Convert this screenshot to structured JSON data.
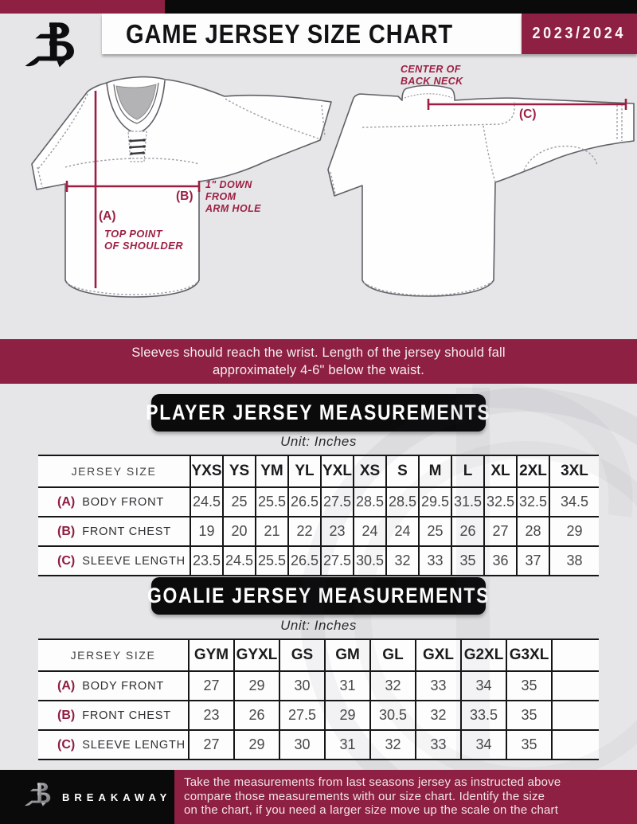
{
  "colors": {
    "maroon": "#8e2043",
    "black": "#0a0a0b",
    "page_bg": "#e6e5e7",
    "measure_line": "#9c1f42",
    "accent_label": "#9c2044"
  },
  "header": {
    "title": "GAME JERSEY SIZE CHART",
    "season": "2023/2024"
  },
  "diagram": {
    "front": {
      "a_label": "(A)",
      "a_desc": [
        "TOP POINT",
        "OF SHOULDER"
      ],
      "b_label": "(B)",
      "b_desc": [
        "1\" DOWN",
        "FROM",
        "ARM HOLE"
      ]
    },
    "back": {
      "c_label": "(C)",
      "neck_desc": [
        "CENTER OF",
        "BACK NECK"
      ]
    }
  },
  "banner": {
    "line1": "Sleeves should reach the wrist. Length of the jersey should fall",
    "line2": "approximately 4-6\" below the waist."
  },
  "player_table": {
    "title": "PLAYER JERSEY MEASUREMENTS",
    "unit": "Unit: Inches",
    "row_header": "JERSEY SIZE",
    "columns": [
      "YXS",
      "YS",
      "YM",
      "YL",
      "YXL",
      "XS",
      "S",
      "M",
      "L",
      "XL",
      "2XL",
      "3XL"
    ],
    "rows": [
      {
        "key": "(A)",
        "name": "BODY FRONT",
        "values": [
          "24.5",
          "25",
          "25.5",
          "26.5",
          "27.5",
          "28.5",
          "28.5",
          "29.5",
          "31.5",
          "32.5",
          "32.5",
          "34.5"
        ]
      },
      {
        "key": "(B)",
        "name": "FRONT CHEST",
        "values": [
          "19",
          "20",
          "21",
          "22",
          "23",
          "24",
          "24",
          "25",
          "26",
          "27",
          "28",
          "29"
        ]
      },
      {
        "key": "(C)",
        "name": "SLEEVE LENGTH",
        "values": [
          "23.5",
          "24.5",
          "25.5",
          "26.5",
          "27.5",
          "30.5",
          "32",
          "33",
          "35",
          "36",
          "37",
          "38"
        ]
      }
    ],
    "trailing_blank": false
  },
  "goalie_table": {
    "title": "GOALIE JERSEY MEASUREMENTS",
    "unit": "Unit: Inches",
    "row_header": "JERSEY SIZE",
    "columns": [
      "GYM",
      "GYXL",
      "GS",
      "GM",
      "GL",
      "GXL",
      "G2XL",
      "G3XL"
    ],
    "rows": [
      {
        "key": "(A)",
        "name": "BODY FRONT",
        "values": [
          "27",
          "29",
          "30",
          "31",
          "32",
          "33",
          "34",
          "35"
        ]
      },
      {
        "key": "(B)",
        "name": "FRONT CHEST",
        "values": [
          "23",
          "26",
          "27.5",
          "29",
          "30.5",
          "32",
          "33.5",
          "35"
        ]
      },
      {
        "key": "(C)",
        "name": "SLEEVE LENGTH",
        "values": [
          "27",
          "29",
          "30",
          "31",
          "32",
          "33",
          "34",
          "35"
        ]
      }
    ],
    "trailing_blank": true
  },
  "footer": {
    "brand": "BREAKAWAY",
    "note_lines": [
      "Take the measurements from last seasons jersey as instructed above",
      "compare those measurements  with our size chart. Identify the size",
      "on the chart, if you need a larger size move up the scale on the chart"
    ]
  }
}
